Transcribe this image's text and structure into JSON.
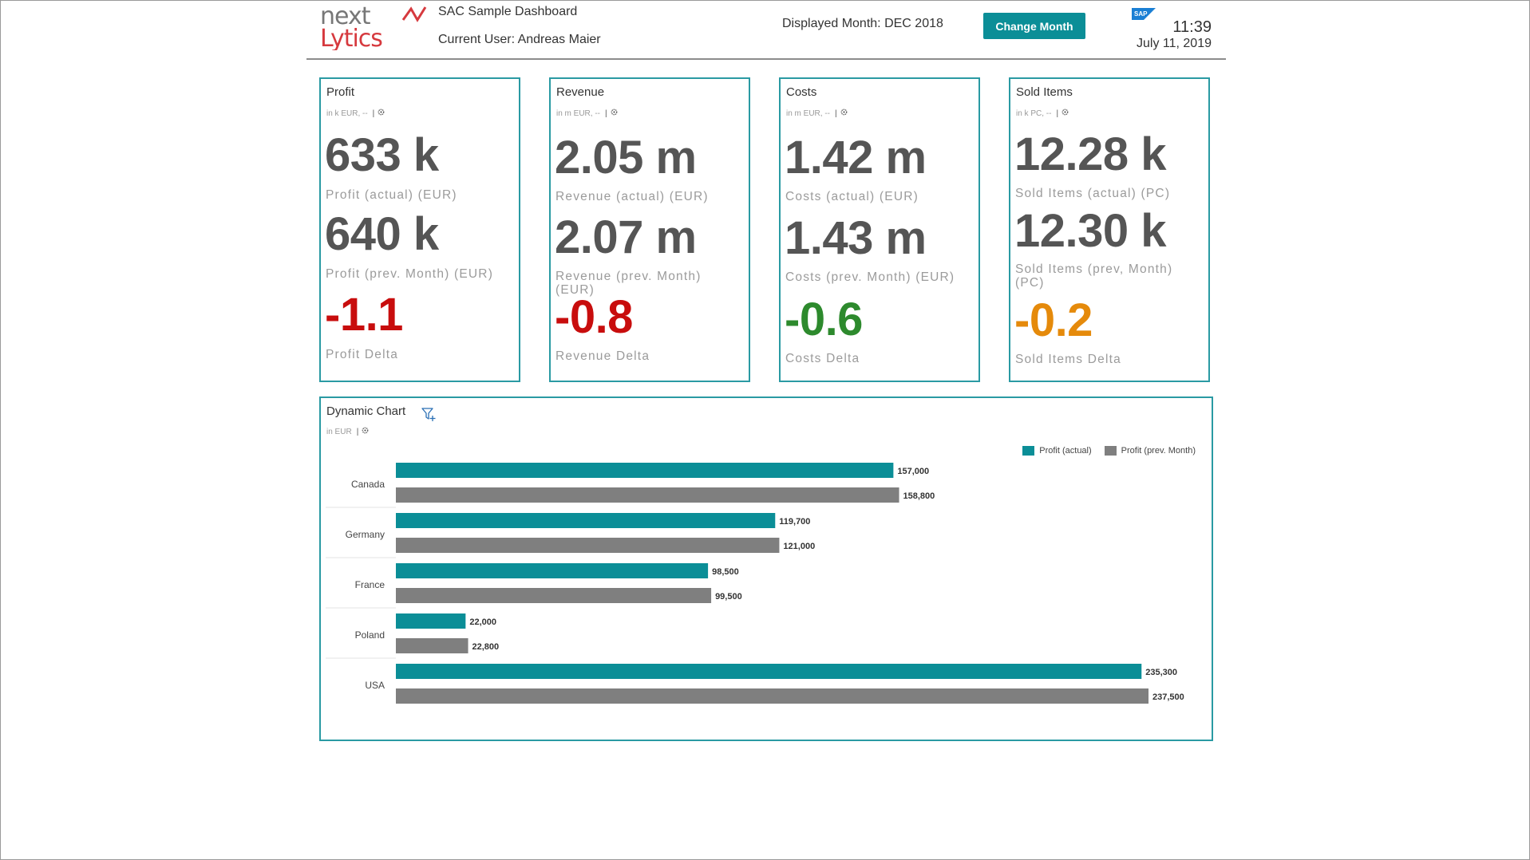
{
  "header": {
    "app_title": "SAC Sample Dashboard",
    "current_user": "Current User: Andreas Maier",
    "displayed_month": "Displayed Month: DEC 2018",
    "change_month_label": "Change Month",
    "time": "11:39",
    "date": "July 11, 2019",
    "logo_text_top": "next",
    "logo_text_bottom": "Lytics",
    "sap_logo_text": "SAP"
  },
  "colors": {
    "accent": "#0b8e97",
    "tile_border": "#2a9aa3",
    "series_actual": "#0b8e97",
    "series_prev": "#7f7f7f",
    "delta_negative": "#c80d0d",
    "delta_positive": "#2d8a2d",
    "delta_warning": "#e58a0b"
  },
  "tiles": [
    {
      "title": "Profit",
      "sub": "in k EUR, --",
      "actual_value": "633 k",
      "actual_label": "Profit (actual) (EUR)",
      "prev_value": "640 k",
      "prev_label": "Profit (prev. Month) (EUR)",
      "delta_value": "-1.1",
      "delta_label": "Profit Delta"
    },
    {
      "title": "Revenue",
      "sub": "in m EUR, --",
      "actual_value": "2.05 m",
      "actual_label": "Revenue (actual) (EUR)",
      "prev_value": "2.07 m",
      "prev_label": "Revenue (prev. Month) (EUR)",
      "delta_value": "-0.8",
      "delta_label": "Revenue Delta"
    },
    {
      "title": "Costs",
      "sub": "in m EUR, --",
      "actual_value": "1.42 m",
      "actual_label": "Costs (actual) (EUR)",
      "prev_value": "1.43 m",
      "prev_label": "Costs (prev. Month) (EUR)",
      "delta_value": "-0.6",
      "delta_label": "Costs Delta"
    },
    {
      "title": "Sold Items",
      "sub": "in k PC, --",
      "actual_value": "12.28 k",
      "actual_label": "Sold Items (actual) (PC)",
      "prev_value": "12.30 k",
      "prev_label": "Sold Items (prev, Month) (PC)",
      "delta_value": "-0.2",
      "delta_label": "Sold Items Delta"
    }
  ],
  "chart": {
    "title": "Dynamic Chart",
    "sub": "in EUR",
    "icons": {
      "filter": "filter-add-icon",
      "settings": "settings-icon"
    }
  },
  "chart_data": {
    "type": "bar",
    "orientation": "horizontal",
    "title": "Dynamic Chart",
    "subtitle": "in EUR",
    "categories": [
      "Canada",
      "Germany",
      "France",
      "Poland",
      "USA"
    ],
    "series": [
      {
        "name": "Profit (actual)",
        "values": [
          157000,
          119700,
          98500,
          22000,
          235300
        ],
        "labels": [
          "157,000",
          "119,700",
          "98,500",
          "22,000",
          "235,300"
        ]
      },
      {
        "name": "Profit (prev. Month)",
        "values": [
          158800,
          121000,
          99500,
          22800,
          237500
        ],
        "labels": [
          "158,800",
          "121,000",
          "99,500",
          "22,800",
          "237,500"
        ]
      }
    ],
    "legend_position": "top-right",
    "grid": false
  }
}
